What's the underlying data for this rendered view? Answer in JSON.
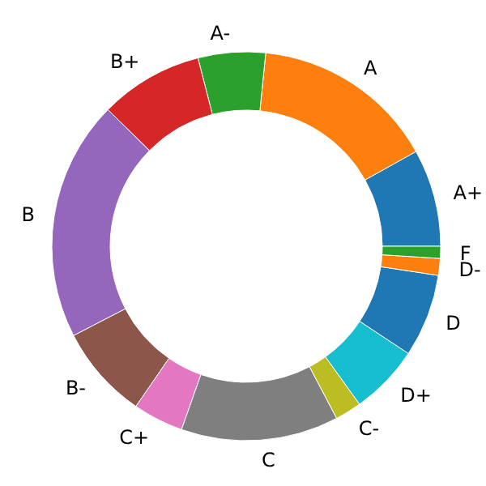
{
  "chart_data": {
    "type": "donut",
    "categories": [
      "A+",
      "A",
      "A-",
      "B+",
      "B",
      "B-",
      "C+",
      "C",
      "C-",
      "D+",
      "D",
      "D-",
      "F"
    ],
    "values": [
      8.1,
      15.3,
      5.6,
      8.6,
      20.0,
      7.8,
      4.2,
      13.1,
      2.2,
      5.8,
      6.9,
      1.4,
      1.0
    ],
    "colors": [
      "#1f77b4",
      "#ff7f0e",
      "#2ca02c",
      "#d62728",
      "#9467bd",
      "#8c564b",
      "#e377c2",
      "#7f7f7f",
      "#bcbd22",
      "#17becf",
      "#1f77b4",
      "#ff7f0e",
      "#2ca02c"
    ]
  }
}
